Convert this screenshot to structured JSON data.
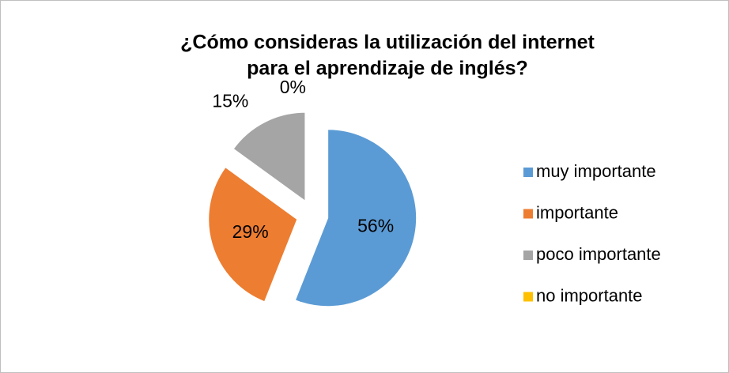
{
  "chart_data": {
    "type": "pie",
    "title": "¿Cómo consideras la utilización del internet",
    "subtitle": "para el aprendizaje de inglés?",
    "categories": [
      "muy importante",
      "importante",
      "poco importante",
      "no importante"
    ],
    "values": [
      56,
      29,
      15,
      0
    ],
    "value_labels": [
      "56%",
      "29%",
      "15%",
      "0%"
    ],
    "colors": [
      "#5b9bd5",
      "#ed7d31",
      "#a5a5a5",
      "#ffc000"
    ],
    "legend": "right"
  }
}
